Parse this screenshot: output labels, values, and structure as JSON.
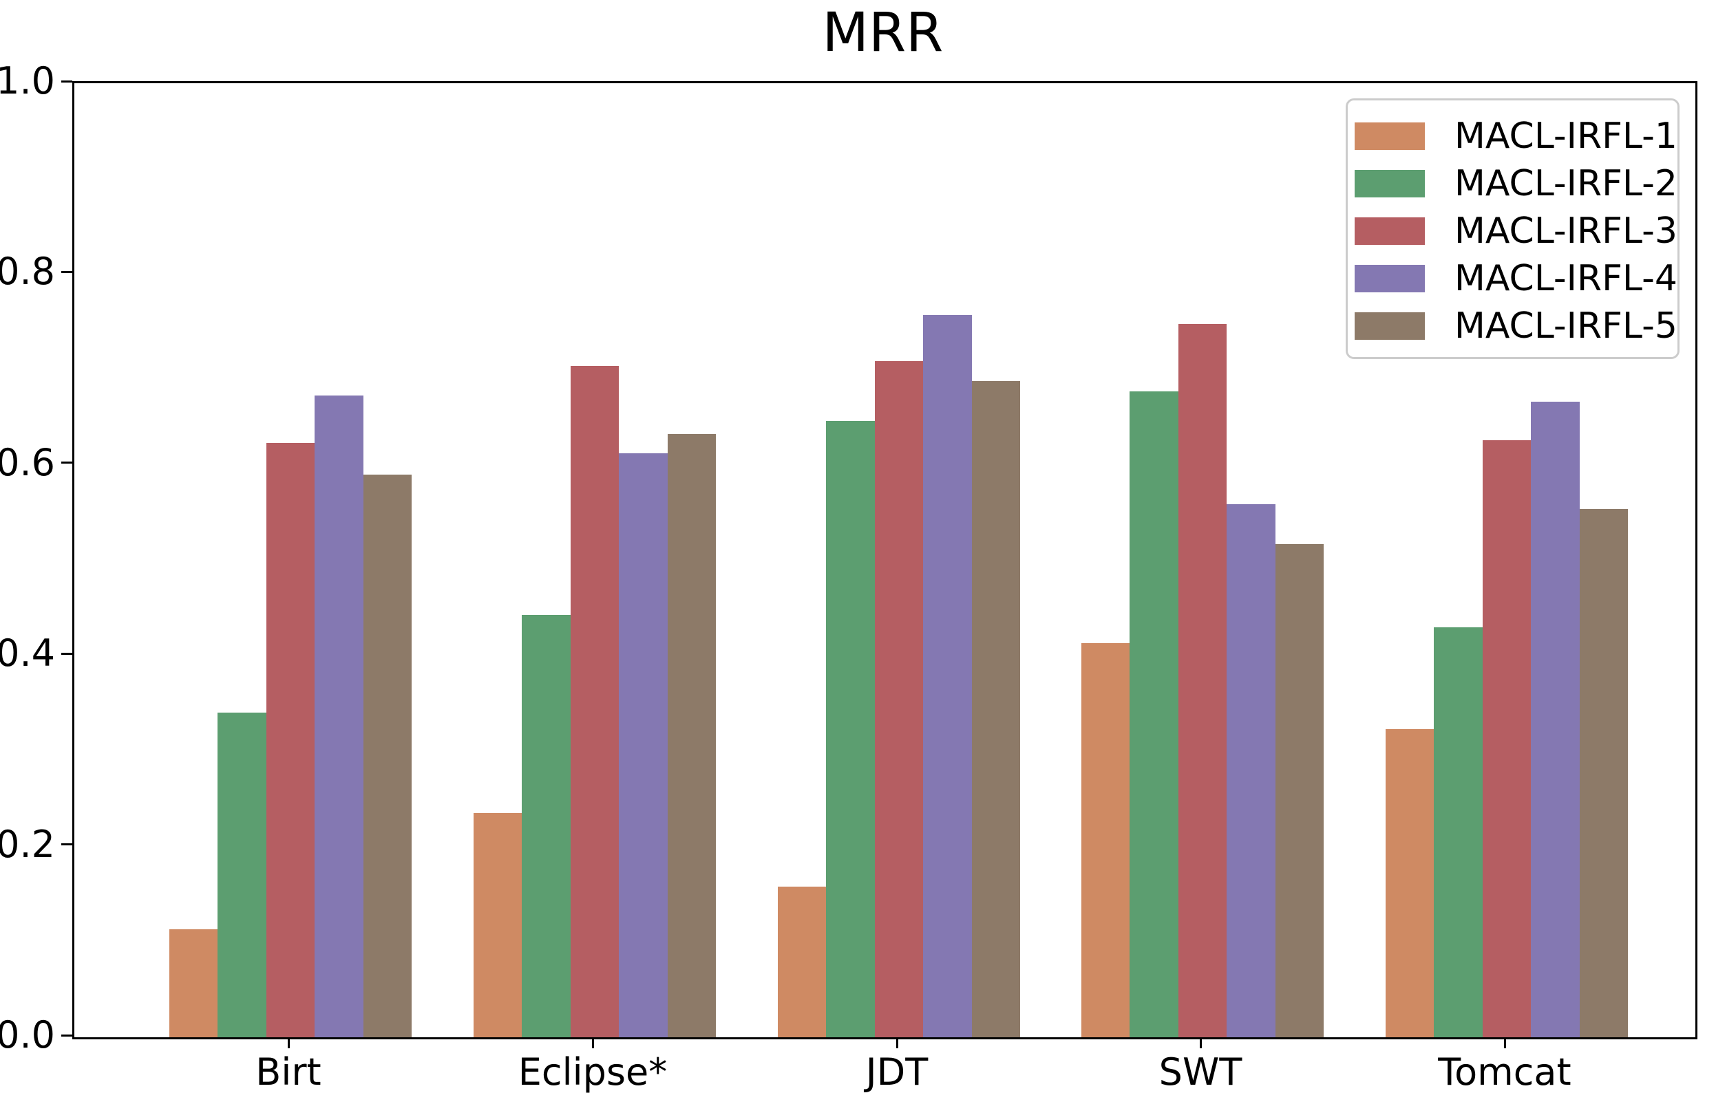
{
  "title": "MRR",
  "chart_data": {
    "type": "bar",
    "title": "MRR",
    "xlabel": "",
    "ylabel": "",
    "categories": [
      "Birt",
      "Eclipse*",
      "JDT",
      "SWT",
      "Tomcat"
    ],
    "series": [
      {
        "name": "MACL-IRFL-1",
        "color": "#cf8a63",
        "values": [
          0.113,
          0.235,
          0.158,
          0.413,
          0.323
        ]
      },
      {
        "name": "MACL-IRFL-2",
        "color": "#5c9e70",
        "values": [
          0.34,
          0.443,
          0.646,
          0.677,
          0.43
        ]
      },
      {
        "name": "MACL-IRFL-3",
        "color": "#b55e62",
        "values": [
          0.623,
          0.704,
          0.709,
          0.748,
          0.626
        ]
      },
      {
        "name": "MACL-IRFL-4",
        "color": "#8478b2",
        "values": [
          0.673,
          0.612,
          0.757,
          0.559,
          0.666
        ]
      },
      {
        "name": "MACL-IRFL-5",
        "color": "#8d7a68",
        "values": [
          0.59,
          0.632,
          0.688,
          0.517,
          0.554
        ]
      }
    ],
    "ylim": [
      0.0,
      1.0
    ],
    "ytick_values": [
      0.0,
      0.2,
      0.4,
      0.6,
      0.8,
      1.0
    ],
    "ytick_labels": [
      "0.0",
      "0.2",
      "0.4",
      "0.6",
      "0.8",
      "1.0"
    ],
    "grid": false,
    "legend_position": "upper right"
  },
  "colors": {
    "background": "#ffffff",
    "axis": "#000000",
    "text": "#000000",
    "legend_border": "#cccccc"
  }
}
